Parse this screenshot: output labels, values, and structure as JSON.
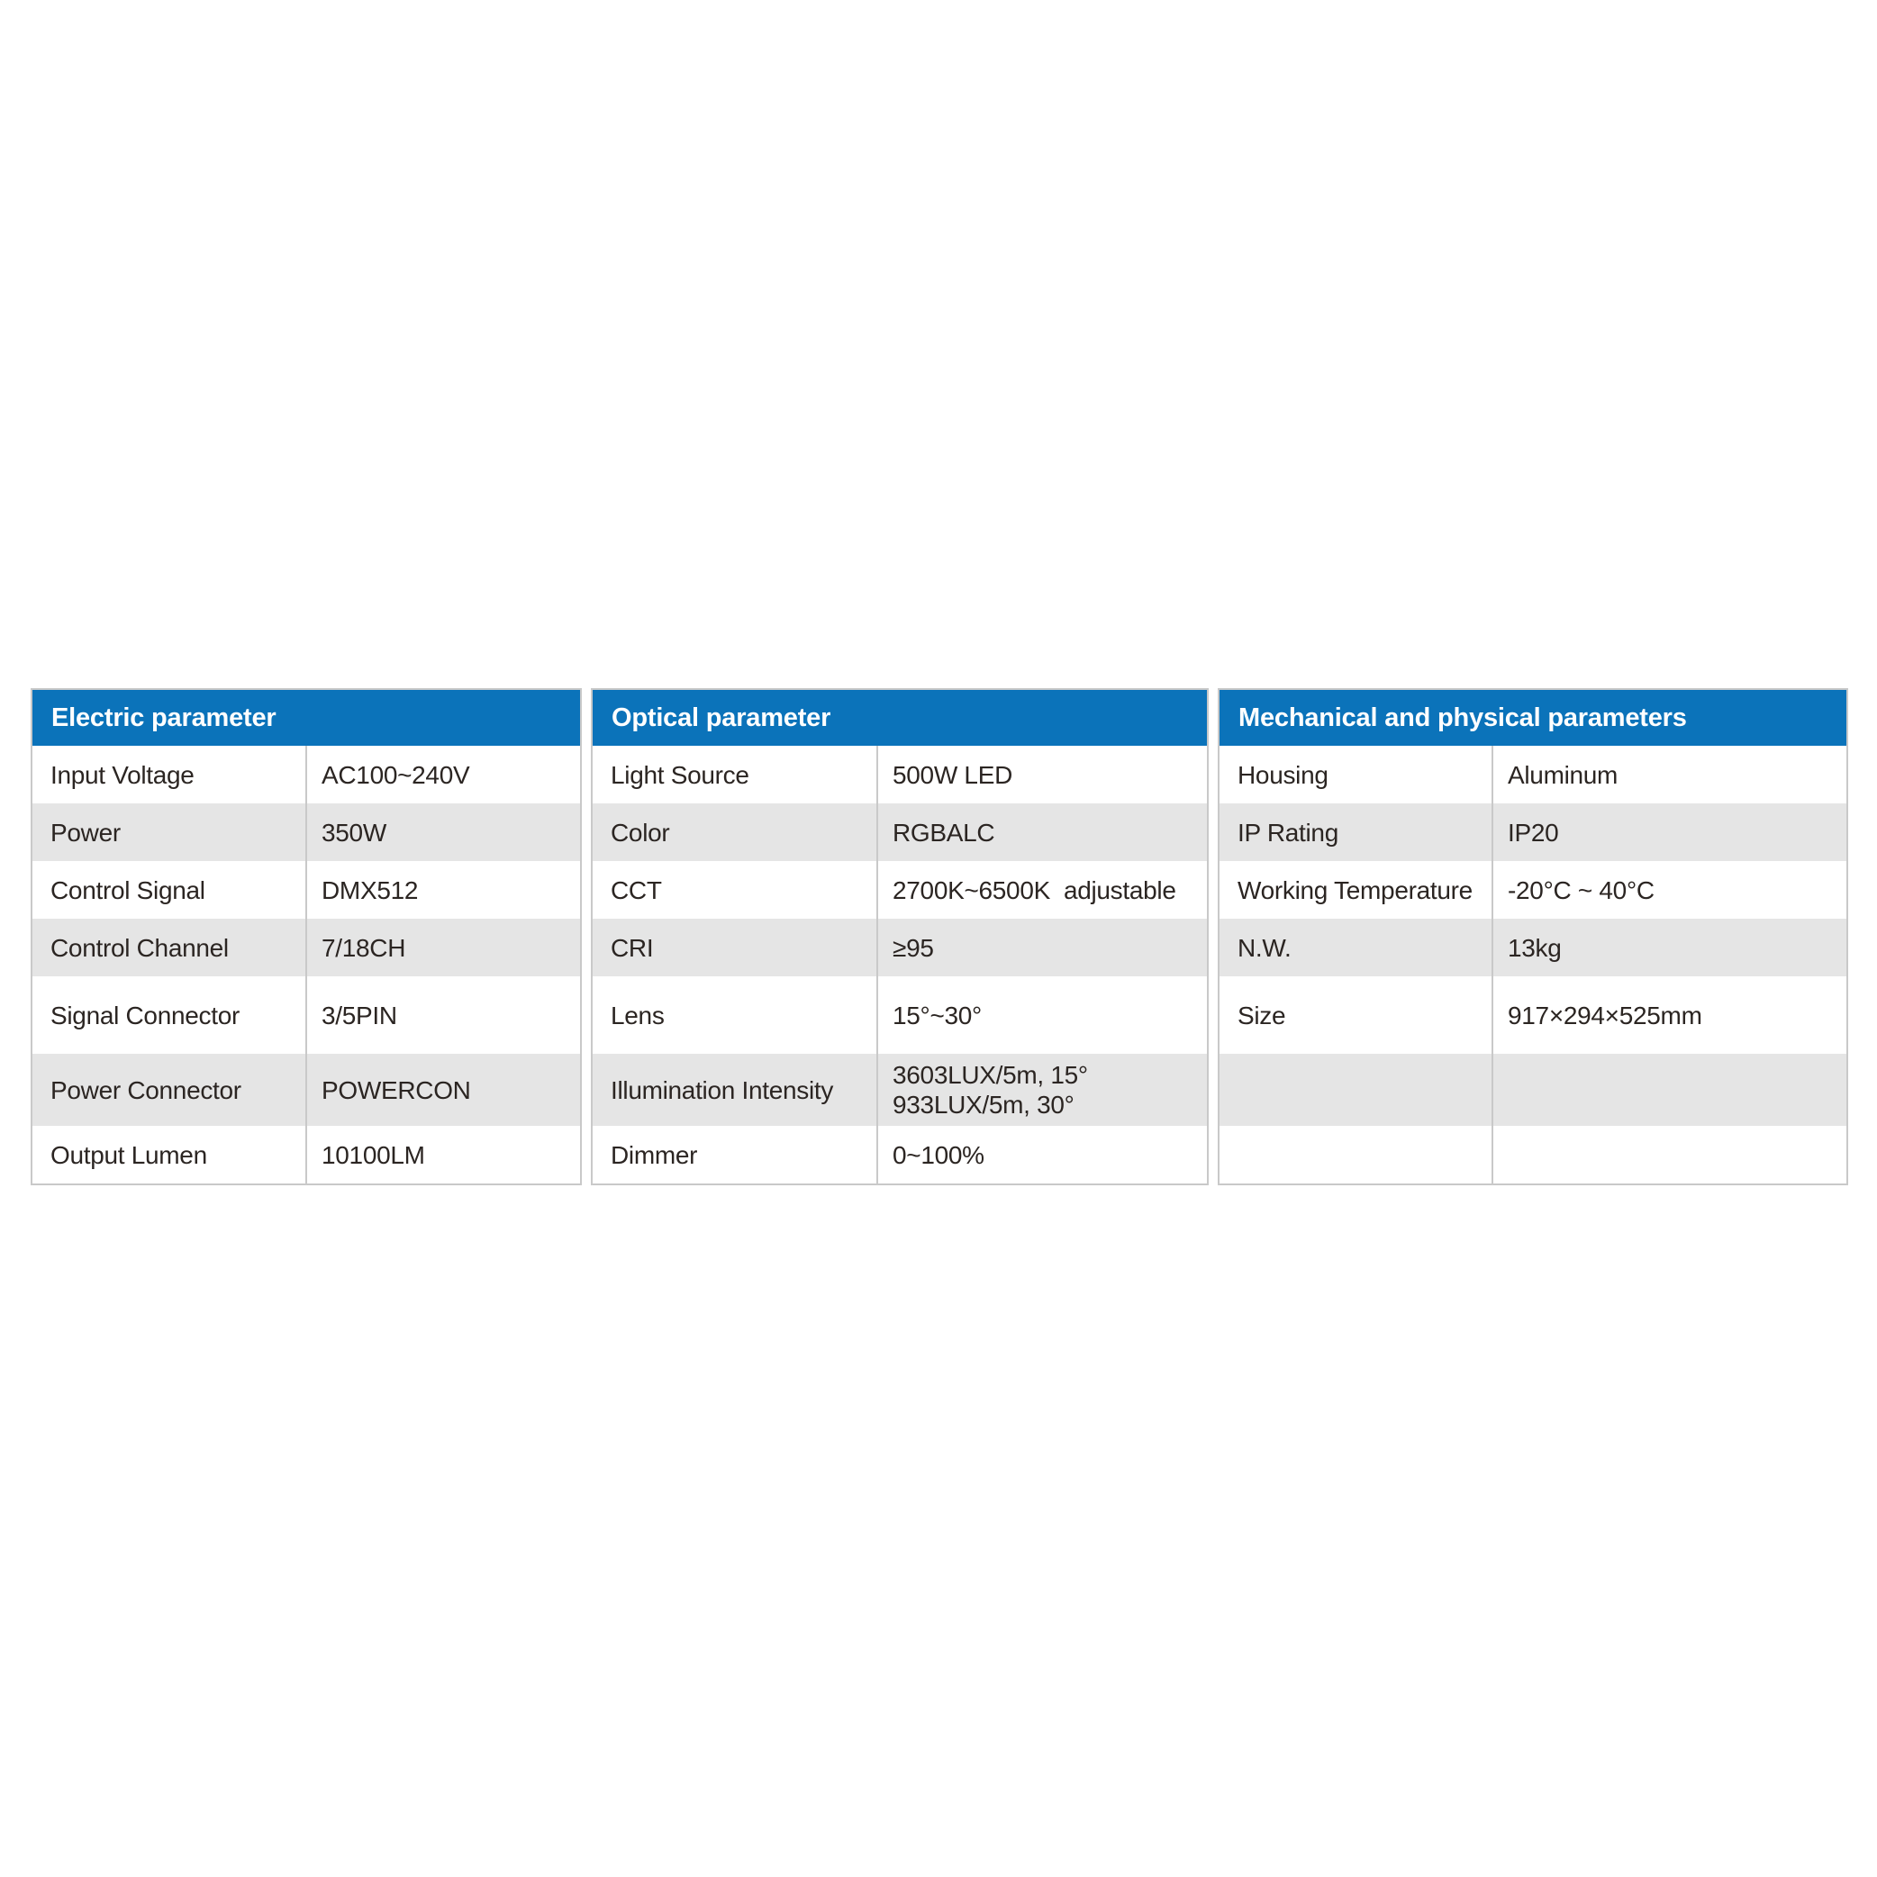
{
  "colors": {
    "header_blue": "#0b73ba",
    "header_text": "#ffffff",
    "row_alt_gray": "#e5e5e5",
    "border_gray": "#c9c9c9",
    "text_dark": "#2b2522",
    "page_background": "#ffffff"
  },
  "tables": [
    {
      "title": "Electric parameter",
      "rows": [
        {
          "label": "Input Voltage",
          "value": "AC100~240V"
        },
        {
          "label": "Power",
          "value": "350W"
        },
        {
          "label": "Control Signal",
          "value": "DMX512"
        },
        {
          "label": "Control Channel",
          "value": "7/18CH"
        },
        {
          "label": "Signal Connector",
          "value": "3/5PIN"
        },
        {
          "label": "Power Connector",
          "value": "POWERCON"
        },
        {
          "label": "Output Lumen",
          "value": "10100LM"
        }
      ]
    },
    {
      "title": "Optical parameter",
      "rows": [
        {
          "label": "Light Source",
          "value": "500W LED"
        },
        {
          "label": "Color",
          "value": "RGBALC"
        },
        {
          "label": "CCT",
          "value": "2700K~6500K  adjustable"
        },
        {
          "label": "CRI",
          "value": "≥95"
        },
        {
          "label": "Lens",
          "value": "15°~30°"
        },
        {
          "label": "Illumination Intensity",
          "value": "3603LUX/5m, 15°\n933LUX/5m, 30°"
        },
        {
          "label": "Dimmer",
          "value": "0~100%"
        }
      ]
    },
    {
      "title": "Mechanical and physical parameters",
      "rows": [
        {
          "label": "Housing",
          "value": "Aluminum"
        },
        {
          "label": "IP Rating",
          "value": "IP20"
        },
        {
          "label": "Working Temperature",
          "value": "-20°C ~ 40°C"
        },
        {
          "label": "N.W.",
          "value": "13kg"
        },
        {
          "label": "Size",
          "value": "917×294×525mm"
        },
        {
          "label": "",
          "value": ""
        },
        {
          "label": "",
          "value": ""
        }
      ]
    }
  ]
}
